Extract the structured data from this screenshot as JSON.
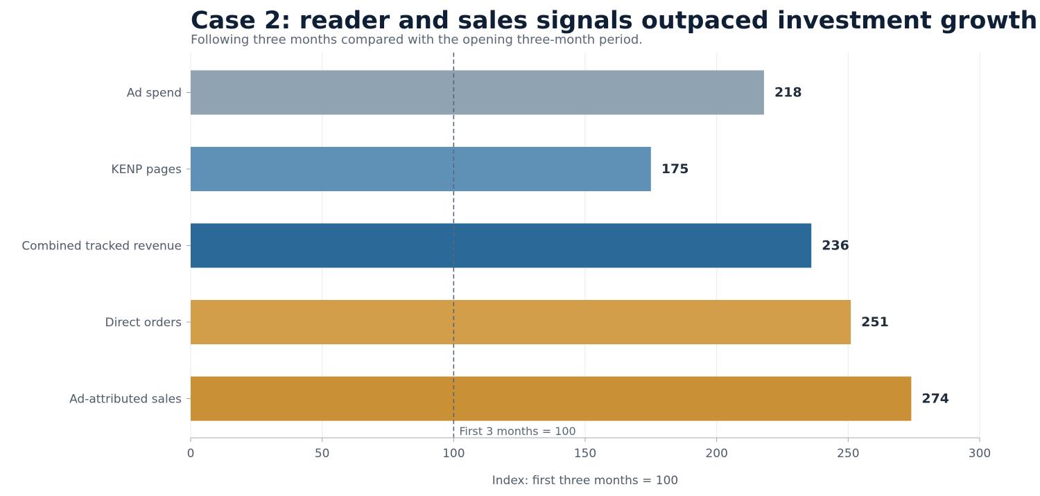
{
  "chart_data": {
    "type": "bar",
    "orientation": "horizontal",
    "title": "Case 2: reader and sales signals outpaced investment growth",
    "subtitle": "Following three months compared with the opening three-month period.",
    "xlabel": "Index: first three months = 100",
    "ylabel": "",
    "xlim": [
      0,
      300
    ],
    "xticks": [
      "0",
      "50",
      "100",
      "150",
      "200",
      "250",
      "300"
    ],
    "grid": "vertical",
    "categories": [
      "Ad spend",
      "KENP pages",
      "Combined tracked revenue",
      "Direct orders",
      "Ad-attributed sales"
    ],
    "values": [
      218,
      175,
      236,
      251,
      274
    ],
    "value_labels": [
      "218",
      "175",
      "236",
      "251",
      "274"
    ],
    "colors": [
      "#8fa3b3",
      "#5f91b6",
      "#2b6a98",
      "#d29e4a",
      "#c99036"
    ],
    "reference_line": {
      "value": 100,
      "label": "First 3 months = 100",
      "style": "dashed",
      "color": "#5b6676"
    }
  }
}
